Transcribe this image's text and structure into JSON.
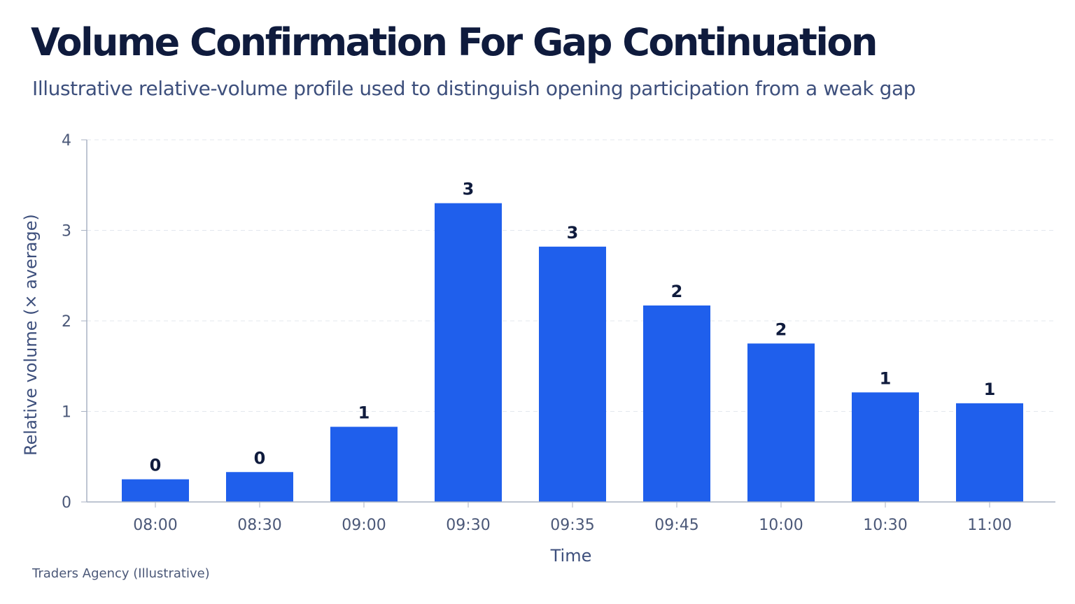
{
  "title": "Volume Confirmation For Gap Continuation",
  "subtitle": "Illustrative relative-volume profile used to distinguish opening participation from a weak gap",
  "source": "Traders Agency (Illustrative)",
  "colors": {
    "bar": "#1f5fec",
    "grid": "#e3e7ee",
    "axis": "#a9b2c3"
  },
  "chart_data": {
    "type": "bar",
    "title": "Volume Confirmation For Gap Continuation",
    "subtitle": "Illustrative relative-volume profile used to distinguish opening participation from a weak gap",
    "xlabel": "Time",
    "ylabel": "Relative volume (× average)",
    "categories": [
      "08:00",
      "08:30",
      "09:00",
      "09:30",
      "09:35",
      "09:45",
      "10:00",
      "10:30",
      "11:00"
    ],
    "values": [
      0.25,
      0.33,
      0.83,
      3.3,
      2.82,
      2.17,
      1.75,
      1.21,
      1.09
    ],
    "value_labels": [
      "0",
      "0",
      "1",
      "3",
      "3",
      "2",
      "2",
      "1",
      "1"
    ],
    "ylim": [
      0,
      4
    ],
    "yticks": [
      "0",
      "1",
      "2",
      "3",
      "4"
    ],
    "grid": true,
    "legend": "none"
  }
}
